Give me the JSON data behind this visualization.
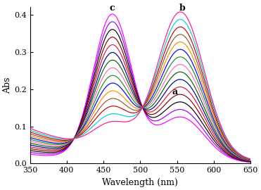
{
  "xlabel": "Wavelength (nm)",
  "ylabel": "Abs",
  "xlim": [
    350,
    650
  ],
  "ylim": [
    0,
    0.42
  ],
  "yticks": [
    0.0,
    0.1,
    0.2,
    0.3,
    0.4
  ],
  "xticks": [
    350,
    400,
    450,
    500,
    550,
    600,
    650
  ],
  "label_c": "c",
  "label_b": "b",
  "label_a": "a",
  "peak1": 462,
  "peak2": 555,
  "isosbestic_wl": 490,
  "isosbestic_abs": 0.185,
  "n_curves": 15,
  "colors_low_to_high_pH": [
    "#FF00FF",
    "#9B00FF",
    "#000000",
    "#8B0000",
    "#DC143C",
    "#00008B",
    "#006400",
    "#FF69B4",
    "#228B22",
    "#0000FF",
    "#FF8C00",
    "#A0522D",
    "#CC0000",
    "#00CED1",
    "#FF1493"
  ]
}
